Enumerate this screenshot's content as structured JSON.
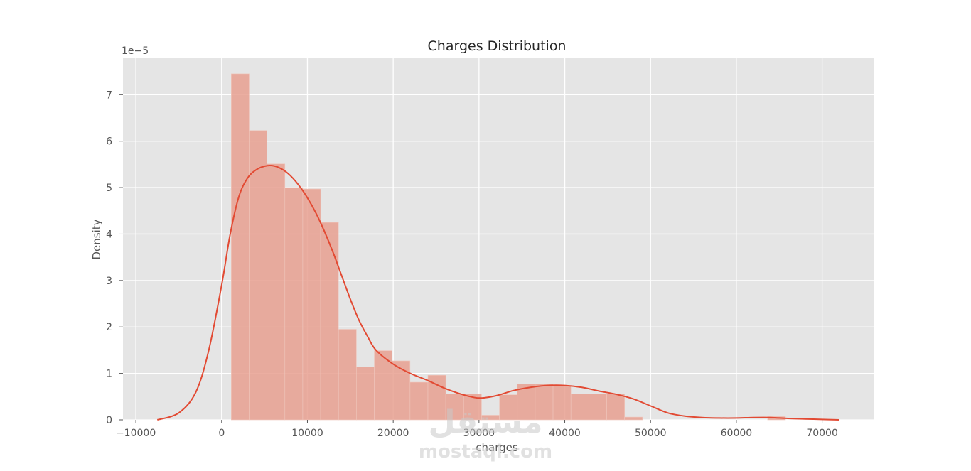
{
  "chart_data": {
    "type": "bar",
    "title": "Charges Distribution",
    "xlabel": "charges",
    "ylabel": "Density",
    "y_offset_text": "1e−5",
    "xlim": [
      -11500,
      76000
    ],
    "ylim": [
      0,
      7.8
    ],
    "y_scale_factor": 1e-05,
    "grid": true,
    "x_ticks": [
      -10000,
      0,
      10000,
      20000,
      30000,
      40000,
      50000,
      60000,
      70000
    ],
    "x_tick_labels": [
      "−10000",
      "0",
      "10000",
      "20000",
      "30000",
      "40000",
      "50000",
      "60000",
      "70000"
    ],
    "y_ticks": [
      0,
      1,
      2,
      3,
      4,
      5,
      6,
      7
    ],
    "y_tick_labels": [
      "0",
      "1",
      "2",
      "3",
      "4",
      "5",
      "6",
      "7"
    ],
    "histogram": {
      "bin_start": 1122,
      "bin_width": 2084,
      "densities": [
        7.45,
        6.23,
        5.51,
        5.0,
        4.97,
        4.25,
        1.95,
        1.14,
        1.49,
        1.27,
        0.81,
        0.96,
        0.56,
        0.56,
        0.1,
        0.54,
        0.77,
        0.77,
        0.74,
        0.56,
        0.56,
        0.56,
        0.06,
        0.0,
        0.0,
        0.0,
        0.0,
        0.0,
        0.0,
        0.0,
        0.07
      ]
    },
    "kde": {
      "x": [
        -7500,
        -5000,
        -3000,
        -1500,
        0,
        1000,
        2000,
        3000,
        4000,
        5000,
        6000,
        7000,
        8000,
        9000,
        10000,
        11000,
        12000,
        13000,
        14000,
        15000,
        16000,
        17000,
        18000,
        20000,
        22000,
        24000,
        26000,
        28000,
        30000,
        32000,
        34000,
        36000,
        38000,
        40000,
        42000,
        44000,
        46000,
        48000,
        50000,
        52000,
        54000,
        56000,
        58000,
        60000,
        62000,
        64000,
        66000,
        68000,
        70000,
        72000
      ],
      "y": [
        0.0,
        0.15,
        0.6,
        1.5,
        2.9,
        4.0,
        4.8,
        5.2,
        5.38,
        5.46,
        5.47,
        5.4,
        5.26,
        5.05,
        4.78,
        4.45,
        4.05,
        3.6,
        3.1,
        2.6,
        2.15,
        1.8,
        1.5,
        1.2,
        1.0,
        0.85,
        0.68,
        0.55,
        0.47,
        0.52,
        0.63,
        0.7,
        0.74,
        0.74,
        0.7,
        0.62,
        0.55,
        0.45,
        0.3,
        0.15,
        0.08,
        0.05,
        0.04,
        0.04,
        0.05,
        0.05,
        0.03,
        0.02,
        0.01,
        0.0
      ]
    },
    "colors": {
      "background": "#e5e5e5",
      "grid": "#ffffff",
      "bar_fill": "#e8a090",
      "kde_line": "#e24a33"
    }
  },
  "watermark": {
    "text": "mostaql.com",
    "arabic": "مستقل"
  }
}
